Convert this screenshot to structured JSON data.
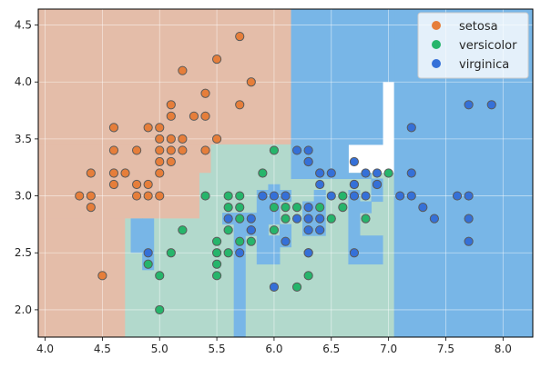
{
  "chart_data": {
    "type": "scatter",
    "title": "",
    "xlabel": "",
    "ylabel": "",
    "xlim": [
      3.94,
      8.26
    ],
    "ylim": [
      1.76,
      4.64
    ],
    "grid": true,
    "legend_position": "top-right",
    "xticks": [
      4.0,
      4.5,
      5.0,
      5.5,
      6.0,
      6.5,
      7.0,
      7.5,
      8.0
    ],
    "xtick_labels": [
      "4.0",
      "4.5",
      "5.0",
      "5.5",
      "6.0",
      "6.5",
      "7.0",
      "7.5",
      "8.0"
    ],
    "yticks": [
      2.0,
      2.5,
      3.0,
      3.5,
      4.0,
      4.5
    ],
    "ytick_labels": [
      "2.0",
      "2.5",
      "3.0",
      "3.5",
      "4.0",
      "4.5"
    ],
    "background_regions": [
      {
        "class": "setosa",
        "x0": 3.94,
        "x1": 6.15,
        "y0": 3.45,
        "y1": 4.64
      },
      {
        "class": "setosa",
        "x0": 3.94,
        "x1": 5.45,
        "y0": 3.2,
        "y1": 3.45
      },
      {
        "class": "setosa",
        "x0": 3.94,
        "x1": 5.35,
        "y0": 2.8,
        "y1": 3.2
      },
      {
        "class": "setosa",
        "x0": 3.94,
        "x1": 4.7,
        "y0": 1.76,
        "y1": 2.8
      },
      {
        "class": "versicolor",
        "x0": 4.7,
        "x1": 5.35,
        "y0": 1.76,
        "y1": 2.8
      },
      {
        "class": "versicolor",
        "x0": 5.35,
        "x1": 7.05,
        "y0": 1.76,
        "y1": 3.2
      },
      {
        "class": "versicolor",
        "x0": 5.45,
        "x1": 6.15,
        "y0": 3.2,
        "y1": 3.45
      },
      {
        "class": "virginica",
        "x0": 6.15,
        "x1": 6.95,
        "y0": 3.45,
        "y1": 4.64
      },
      {
        "class": "virginica",
        "x0": 6.15,
        "x1": 6.65,
        "y0": 3.15,
        "y1": 3.45
      },
      {
        "class": "virginica",
        "x0": 6.95,
        "x1": 7.05,
        "y0": 4.0,
        "y1": 4.64
      },
      {
        "class": "virginica",
        "x0": 7.05,
        "x1": 8.26,
        "y0": 1.76,
        "y1": 4.64
      },
      {
        "class": "virginica",
        "x0": 4.75,
        "x1": 4.85,
        "y0": 2.5,
        "y1": 2.8
      },
      {
        "class": "virginica",
        "x0": 4.85,
        "x1": 4.95,
        "y0": 2.35,
        "y1": 2.8
      },
      {
        "class": "virginica",
        "x0": 5.65,
        "x1": 5.75,
        "y0": 1.76,
        "y1": 2.85
      },
      {
        "class": "virginica",
        "x0": 5.55,
        "x1": 5.65,
        "y0": 2.75,
        "y1": 2.85
      },
      {
        "class": "virginica",
        "x0": 5.75,
        "x1": 5.95,
        "y0": 2.65,
        "y1": 2.85
      },
      {
        "class": "virginica",
        "x0": 5.85,
        "x1": 5.95,
        "y0": 2.85,
        "y1": 3.05
      },
      {
        "class": "virginica",
        "x0": 5.95,
        "x1": 6.05,
        "y0": 2.75,
        "y1": 3.1
      },
      {
        "class": "virginica",
        "x0": 5.85,
        "x1": 6.05,
        "y0": 2.4,
        "y1": 2.65
      },
      {
        "class": "virginica",
        "x0": 6.05,
        "x1": 6.15,
        "y0": 2.55,
        "y1": 2.75
      },
      {
        "class": "virginica",
        "x0": 6.05,
        "x1": 6.15,
        "y0": 2.95,
        "y1": 3.05
      },
      {
        "class": "virginica",
        "x0": 6.25,
        "x1": 6.35,
        "y0": 2.65,
        "y1": 2.95
      },
      {
        "class": "virginica",
        "x0": 6.35,
        "x1": 6.45,
        "y0": 2.65,
        "y1": 3.05
      },
      {
        "class": "virginica",
        "x0": 6.65,
        "x1": 6.75,
        "y0": 2.4,
        "y1": 3.05
      },
      {
        "class": "virginica",
        "x0": 6.75,
        "x1": 6.95,
        "y0": 2.4,
        "y1": 2.65
      },
      {
        "class": "virginica",
        "x0": 6.75,
        "x1": 6.85,
        "y0": 2.85,
        "y1": 2.95
      },
      {
        "class": "virginica",
        "x0": 6.65,
        "x1": 6.85,
        "y0": 3.15,
        "y1": 3.2
      },
      {
        "class": "virginica",
        "x0": 6.85,
        "x1": 6.95,
        "y0": 2.95,
        "y1": 3.15
      }
    ],
    "series": [
      {
        "name": "setosa",
        "color": "#e67e3a",
        "region_color": "#e4bda9",
        "points": [
          [
            4.3,
            3.0
          ],
          [
            4.4,
            2.9
          ],
          [
            4.4,
            3.0
          ],
          [
            4.4,
            3.2
          ],
          [
            4.5,
            2.3
          ],
          [
            4.6,
            3.1
          ],
          [
            4.6,
            3.2
          ],
          [
            4.6,
            3.4
          ],
          [
            4.6,
            3.6
          ],
          [
            4.7,
            3.2
          ],
          [
            4.8,
            3.0
          ],
          [
            4.8,
            3.1
          ],
          [
            4.8,
            3.4
          ],
          [
            4.9,
            3.0
          ],
          [
            4.9,
            3.1
          ],
          [
            4.9,
            3.6
          ],
          [
            5.0,
            3.0
          ],
          [
            5.0,
            3.2
          ],
          [
            5.0,
            3.3
          ],
          [
            5.0,
            3.4
          ],
          [
            5.0,
            3.5
          ],
          [
            5.0,
            3.6
          ],
          [
            5.1,
            3.3
          ],
          [
            5.1,
            3.4
          ],
          [
            5.1,
            3.5
          ],
          [
            5.1,
            3.7
          ],
          [
            5.1,
            3.8
          ],
          [
            5.2,
            3.4
          ],
          [
            5.2,
            3.5
          ],
          [
            5.2,
            4.1
          ],
          [
            5.3,
            3.7
          ],
          [
            5.4,
            3.4
          ],
          [
            5.4,
            3.7
          ],
          [
            5.4,
            3.9
          ],
          [
            5.5,
            3.5
          ],
          [
            5.5,
            4.2
          ],
          [
            5.7,
            3.8
          ],
          [
            5.7,
            4.4
          ],
          [
            5.8,
            4.0
          ]
        ]
      },
      {
        "name": "versicolor",
        "color": "#26b56b",
        "region_color": "#b2d9cc",
        "points": [
          [
            4.9,
            2.4
          ],
          [
            5.0,
            2.0
          ],
          [
            5.0,
            2.3
          ],
          [
            5.1,
            2.5
          ],
          [
            5.2,
            2.7
          ],
          [
            5.4,
            3.0
          ],
          [
            5.5,
            2.3
          ],
          [
            5.5,
            2.4
          ],
          [
            5.5,
            2.5
          ],
          [
            5.5,
            2.6
          ],
          [
            5.6,
            2.5
          ],
          [
            5.6,
            2.7
          ],
          [
            5.6,
            2.9
          ],
          [
            5.6,
            3.0
          ],
          [
            5.7,
            2.6
          ],
          [
            5.7,
            2.8
          ],
          [
            5.7,
            2.9
          ],
          [
            5.7,
            3.0
          ],
          [
            5.8,
            2.6
          ],
          [
            5.8,
            2.7
          ],
          [
            5.9,
            3.0
          ],
          [
            5.9,
            3.2
          ],
          [
            6.0,
            2.7
          ],
          [
            6.0,
            2.9
          ],
          [
            6.0,
            3.4
          ],
          [
            6.1,
            2.8
          ],
          [
            6.1,
            2.9
          ],
          [
            6.1,
            3.0
          ],
          [
            6.2,
            2.2
          ],
          [
            6.2,
            2.9
          ],
          [
            6.3,
            2.3
          ],
          [
            6.3,
            2.5
          ],
          [
            6.3,
            3.3
          ],
          [
            6.4,
            2.9
          ],
          [
            6.4,
            3.2
          ],
          [
            6.5,
            2.8
          ],
          [
            6.6,
            2.9
          ],
          [
            6.6,
            3.0
          ],
          [
            6.7,
            3.0
          ],
          [
            6.7,
            3.1
          ],
          [
            6.8,
            2.8
          ],
          [
            6.9,
            3.1
          ],
          [
            7.0,
            3.2
          ]
        ]
      },
      {
        "name": "virginica",
        "color": "#3570d8",
        "region_color": "#78b6e7",
        "points": [
          [
            4.9,
            2.5
          ],
          [
            5.6,
            2.8
          ],
          [
            5.7,
            2.5
          ],
          [
            5.8,
            2.7
          ],
          [
            5.8,
            2.8
          ],
          [
            5.9,
            3.0
          ],
          [
            6.0,
            2.2
          ],
          [
            6.0,
            3.0
          ],
          [
            6.1,
            2.6
          ],
          [
            6.1,
            3.0
          ],
          [
            6.2,
            2.8
          ],
          [
            6.2,
            3.4
          ],
          [
            6.3,
            2.5
          ],
          [
            6.3,
            2.7
          ],
          [
            6.3,
            2.8
          ],
          [
            6.3,
            2.9
          ],
          [
            6.3,
            3.3
          ],
          [
            6.3,
            3.4
          ],
          [
            6.4,
            2.7
          ],
          [
            6.4,
            2.8
          ],
          [
            6.4,
            3.1
          ],
          [
            6.4,
            3.2
          ],
          [
            6.5,
            3.0
          ],
          [
            6.5,
            3.2
          ],
          [
            6.7,
            2.5
          ],
          [
            6.7,
            3.0
          ],
          [
            6.7,
            3.1
          ],
          [
            6.7,
            3.3
          ],
          [
            6.8,
            3.0
          ],
          [
            6.8,
            3.2
          ],
          [
            6.9,
            3.1
          ],
          [
            6.9,
            3.2
          ],
          [
            7.1,
            3.0
          ],
          [
            7.2,
            3.0
          ],
          [
            7.2,
            3.2
          ],
          [
            7.2,
            3.6
          ],
          [
            7.3,
            2.9
          ],
          [
            7.4,
            2.8
          ],
          [
            7.6,
            3.0
          ],
          [
            7.7,
            2.6
          ],
          [
            7.7,
            2.8
          ],
          [
            7.7,
            3.0
          ],
          [
            7.7,
            3.8
          ],
          [
            7.9,
            3.8
          ]
        ]
      }
    ]
  }
}
